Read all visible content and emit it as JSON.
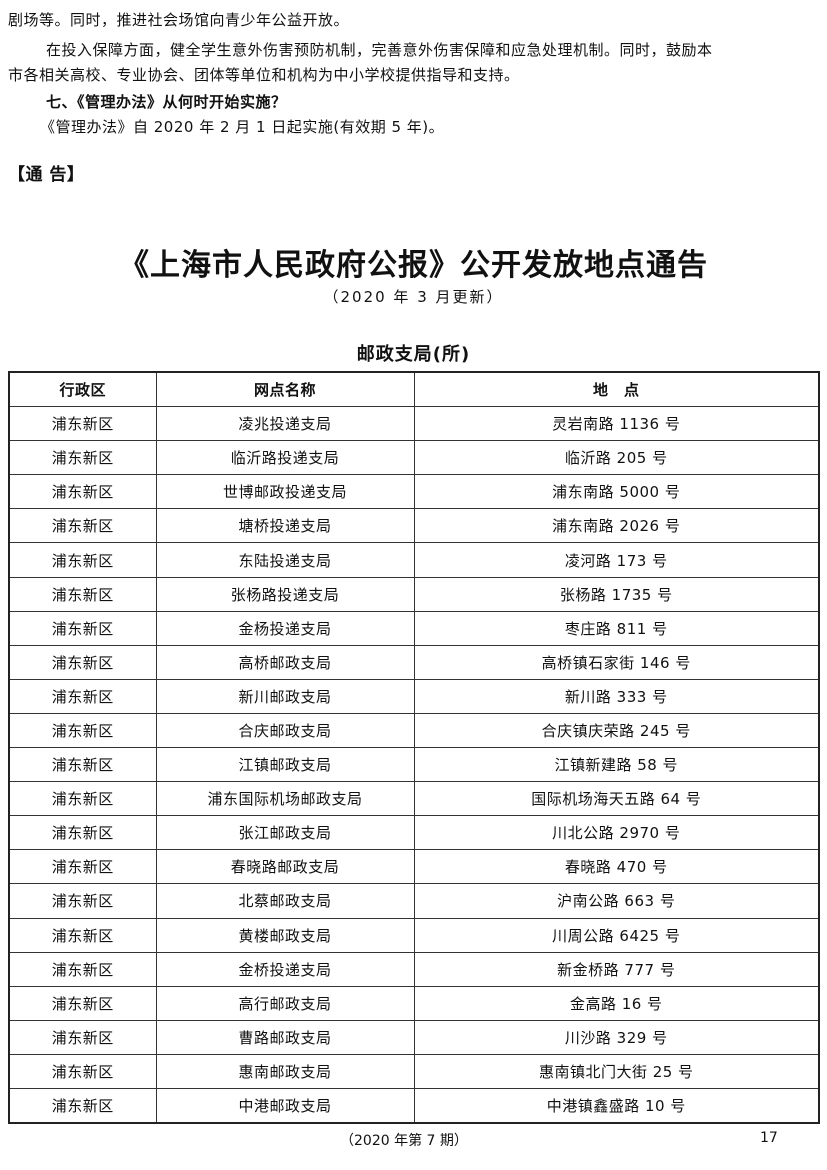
{
  "paragraphs": [
    "剧场等。同时，推进社会场馆向青少年公益开放。",
    "在投入保障方面，健全学生意外伤害预防机制，完善意外伤害保障和应急处理机制。同时，鼓励本",
    "市各相关高校、专业协会、团体等单位和机构为中小学校提供指导和支持。",
    "七、《管理办法》从何时开始实施？",
    "《管理办法》自 2020 年 2 月 1 日起实施(有效期 5 年)。"
  ],
  "section_tag": "【通 告】",
  "title": "《上海市人民政府公报》公开发放地点通告",
  "subtitle": "（2020 年 3 月更新）",
  "table_caption": "邮政支局(所)",
  "table": {
    "headers": [
      "行政区",
      "网点名称",
      "地　点"
    ],
    "rows": [
      [
        "浦东新区",
        "凌兆投递支局",
        "灵岩南路 1136 号"
      ],
      [
        "浦东新区",
        "临沂路投递支局",
        "临沂路 205 号"
      ],
      [
        "浦东新区",
        "世博邮政投递支局",
        "浦东南路 5000 号"
      ],
      [
        "浦东新区",
        "塘桥投递支局",
        "浦东南路 2026 号"
      ],
      [
        "浦东新区",
        "东陆投递支局",
        "凌河路 173 号"
      ],
      [
        "浦东新区",
        "张杨路投递支局",
        "张杨路 1735 号"
      ],
      [
        "浦东新区",
        "金杨投递支局",
        "枣庄路 811 号"
      ],
      [
        "浦东新区",
        "高桥邮政支局",
        "高桥镇石家街 146 号"
      ],
      [
        "浦东新区",
        "新川邮政支局",
        "新川路 333 号"
      ],
      [
        "浦东新区",
        "合庆邮政支局",
        "合庆镇庆荣路 245 号"
      ],
      [
        "浦东新区",
        "江镇邮政支局",
        "江镇新建路 58 号"
      ],
      [
        "浦东新区",
        "浦东国际机场邮政支局",
        "国际机场海天五路 64 号"
      ],
      [
        "浦东新区",
        "张江邮政支局",
        "川北公路 2970 号"
      ],
      [
        "浦东新区",
        "春晓路邮政支局",
        "春晓路 470 号"
      ],
      [
        "浦东新区",
        "北蔡邮政支局",
        "沪南公路 663 号"
      ],
      [
        "浦东新区",
        "黄楼邮政支局",
        "川周公路 6425 号"
      ],
      [
        "浦东新区",
        "金桥投递支局",
        "新金桥路 777 号"
      ],
      [
        "浦东新区",
        "高行邮政支局",
        "金高路 16 号"
      ],
      [
        "浦东新区",
        "曹路邮政支局",
        "川沙路 329 号"
      ],
      [
        "浦东新区",
        "惠南邮政支局",
        "惠南镇北门大街 25 号"
      ],
      [
        "浦东新区",
        "中港邮政支局",
        "中港镇鑫盛路 10 号"
      ]
    ]
  },
  "footer": {
    "issue": "（2020 年第 7 期）",
    "page": "17"
  }
}
